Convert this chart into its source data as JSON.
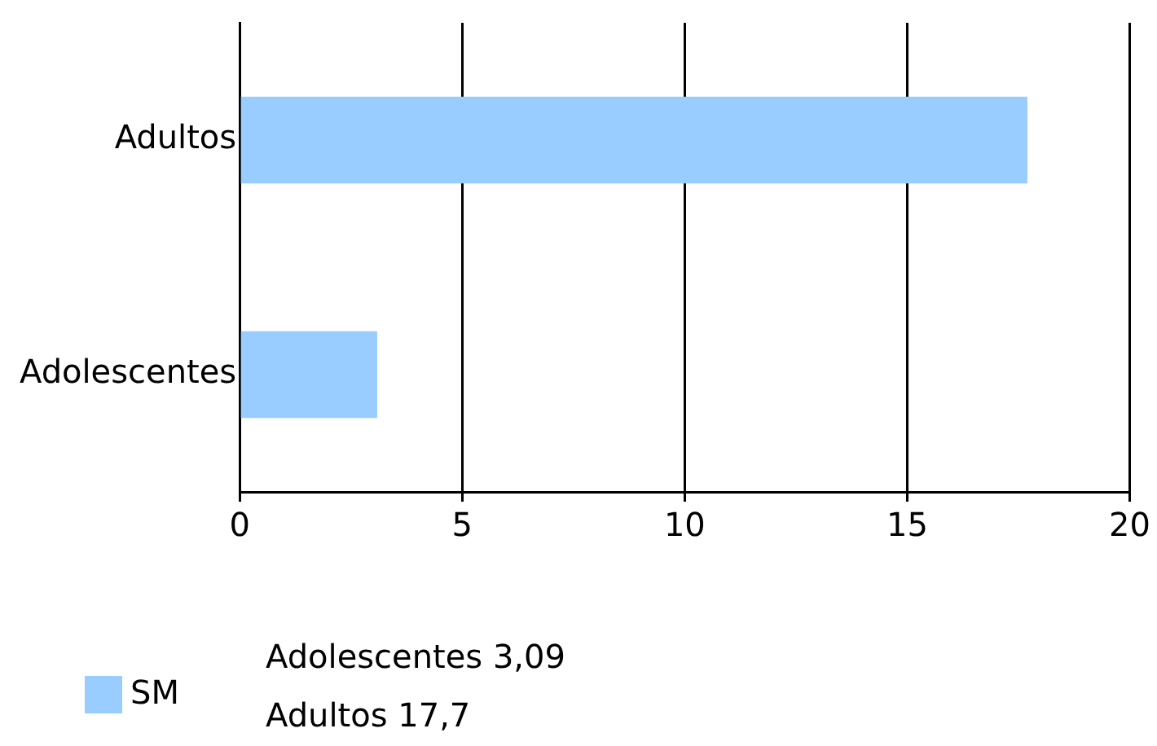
{
  "chart_data": {
    "type": "bar",
    "orientation": "horizontal",
    "categories": [
      "Adultos",
      "Adolescentes"
    ],
    "series": [
      {
        "name": "SM",
        "color": "#99ccff",
        "values": [
          17.7,
          3.09
        ],
        "value_labels": [
          "17,7",
          "3,09"
        ]
      }
    ],
    "xlim": [
      0,
      20
    ],
    "xticks": [
      0,
      5,
      10,
      15,
      20
    ],
    "grid": "x",
    "legend": "bottom"
  }
}
